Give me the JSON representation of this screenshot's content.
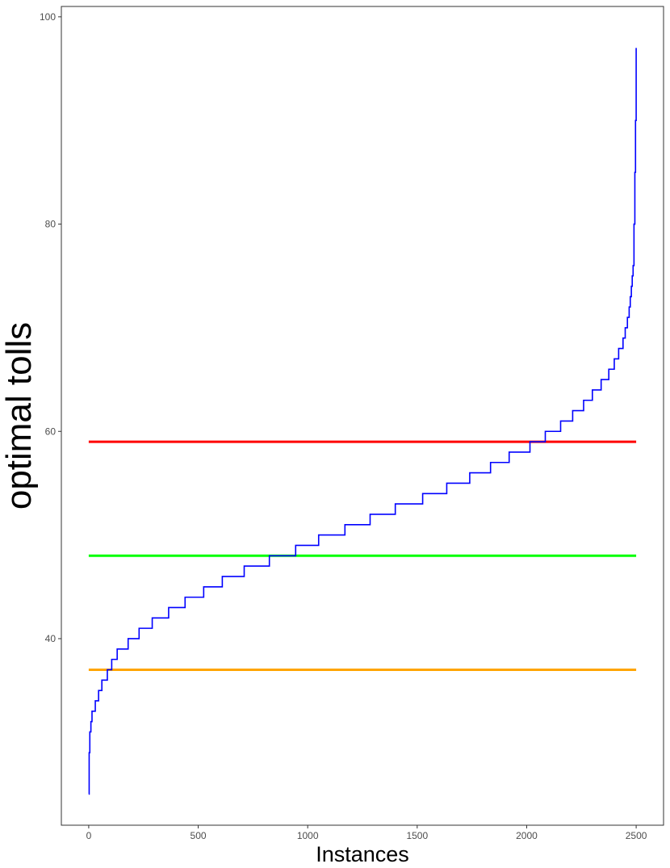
{
  "chart_data": {
    "type": "line",
    "title": "",
    "xlabel": "Instances",
    "ylabel": "optimal tolls",
    "xlim": [
      -125,
      2625
    ],
    "ylim": [
      22,
      101
    ],
    "x_ticks": [
      0,
      500,
      1000,
      1500,
      2000,
      2500
    ],
    "y_ticks": [
      40,
      60,
      80,
      100
    ],
    "grid": false,
    "legend": "none",
    "series": [
      {
        "color": "#0000ff",
        "steps": [
          [
            0,
            25
          ],
          [
            2,
            29
          ],
          [
            5,
            31
          ],
          [
            10,
            32
          ],
          [
            15,
            33
          ],
          [
            30,
            34
          ],
          [
            45,
            35
          ],
          [
            60,
            36
          ],
          [
            85,
            37
          ],
          [
            105,
            38
          ],
          [
            130,
            39
          ],
          [
            180,
            40
          ],
          [
            230,
            41
          ],
          [
            290,
            42
          ],
          [
            365,
            43
          ],
          [
            440,
            44
          ],
          [
            525,
            45
          ],
          [
            610,
            46
          ],
          [
            710,
            47
          ],
          [
            825,
            48
          ],
          [
            945,
            49
          ],
          [
            1050,
            50
          ],
          [
            1170,
            51
          ],
          [
            1285,
            52
          ],
          [
            1400,
            53
          ],
          [
            1525,
            54
          ],
          [
            1635,
            55
          ],
          [
            1740,
            56
          ],
          [
            1835,
            57
          ],
          [
            1920,
            58
          ],
          [
            2015,
            59
          ],
          [
            2085,
            60
          ],
          [
            2155,
            61
          ],
          [
            2210,
            62
          ],
          [
            2260,
            63
          ],
          [
            2300,
            64
          ],
          [
            2340,
            65
          ],
          [
            2375,
            66
          ],
          [
            2400,
            67
          ],
          [
            2420,
            68
          ],
          [
            2440,
            69
          ],
          [
            2450,
            70
          ],
          [
            2460,
            71
          ],
          [
            2468,
            72
          ],
          [
            2473,
            73
          ],
          [
            2478,
            74
          ],
          [
            2482,
            75
          ],
          [
            2486,
            76
          ],
          [
            2490,
            80
          ],
          [
            2494,
            85
          ],
          [
            2497,
            90
          ],
          [
            2500,
            97
          ]
        ]
      }
    ],
    "reference_lines": [
      {
        "y": 59,
        "color": "#ff0000"
      },
      {
        "y": 48,
        "color": "#00ff00"
      },
      {
        "y": 37,
        "color": "#ffa500"
      }
    ]
  }
}
